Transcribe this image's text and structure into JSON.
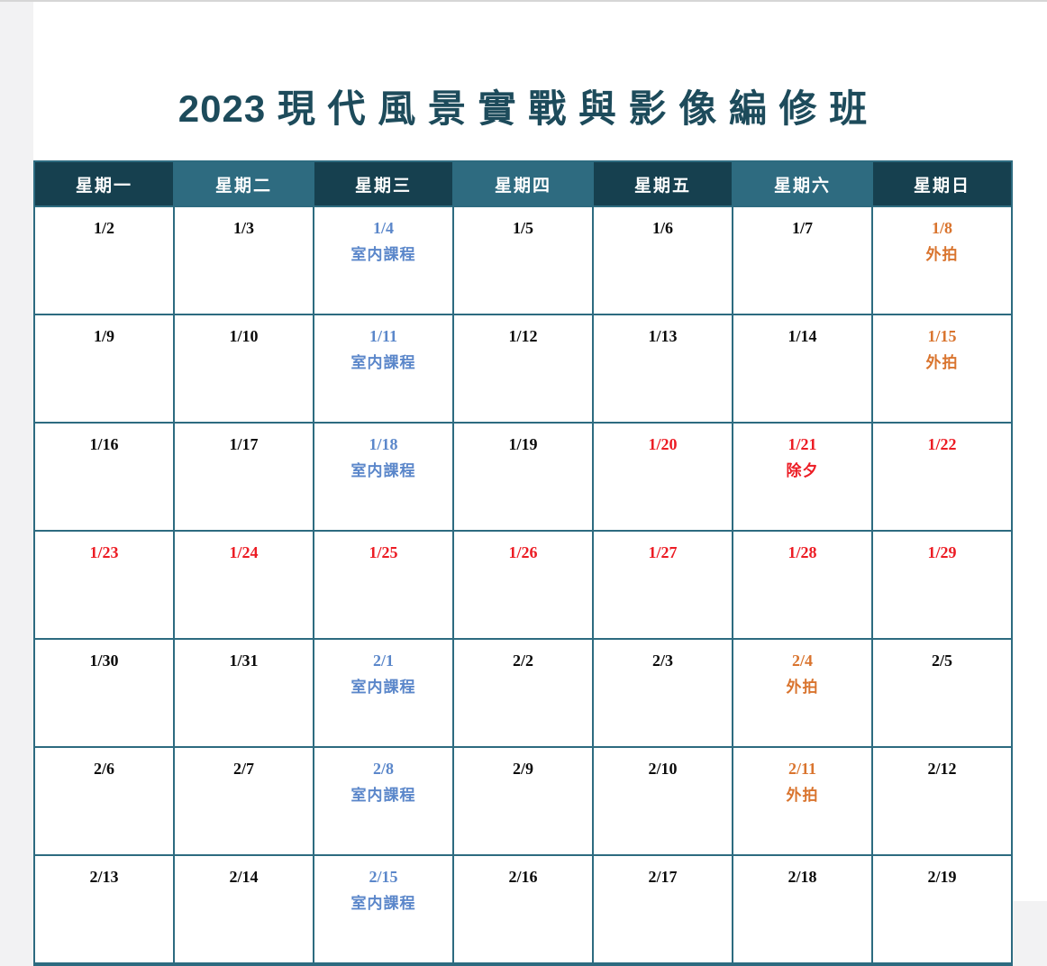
{
  "page": {
    "title": "2023 現 代 風 景 實 戰 與 影 像 編 修 班"
  },
  "colors": {
    "title": "#1d4b5b",
    "header_dark": "#16404f",
    "header_light": "#2e6b80",
    "grid_border": "#2d6b80",
    "date_black": "#0b0b0b",
    "holiday_red": "#ec1c24",
    "indoor_blue": "#5b87ca",
    "outdoor_orange": "#d9742e"
  },
  "calendar": {
    "weekdays": [
      "星期一",
      "星期二",
      "星期三",
      "星期四",
      "星期五",
      "星期六",
      "星期日"
    ],
    "legend": {
      "indoor_label": "室内課程",
      "outdoor_label": "外拍",
      "eve_label": "除夕"
    },
    "rows": [
      {
        "cells": [
          {
            "date": "1/2",
            "note": "",
            "color": "black"
          },
          {
            "date": "1/3",
            "note": "",
            "color": "black"
          },
          {
            "date": "1/4",
            "note": "室内課程",
            "color": "blue"
          },
          {
            "date": "1/5",
            "note": "",
            "color": "black"
          },
          {
            "date": "1/6",
            "note": "",
            "color": "black"
          },
          {
            "date": "1/7",
            "note": "",
            "color": "black"
          },
          {
            "date": "1/8",
            "note": "外拍",
            "color": "orange"
          }
        ]
      },
      {
        "cells": [
          {
            "date": "1/9",
            "note": "",
            "color": "black"
          },
          {
            "date": "1/10",
            "note": "",
            "color": "black"
          },
          {
            "date": "1/11",
            "note": "室内課程",
            "color": "blue"
          },
          {
            "date": "1/12",
            "note": "",
            "color": "black"
          },
          {
            "date": "1/13",
            "note": "",
            "color": "black"
          },
          {
            "date": "1/14",
            "note": "",
            "color": "black"
          },
          {
            "date": "1/15",
            "note": "外拍",
            "color": "orange"
          }
        ]
      },
      {
        "cells": [
          {
            "date": "1/16",
            "note": "",
            "color": "black"
          },
          {
            "date": "1/17",
            "note": "",
            "color": "black"
          },
          {
            "date": "1/18",
            "note": "室内課程",
            "color": "blue"
          },
          {
            "date": "1/19",
            "note": "",
            "color": "black"
          },
          {
            "date": "1/20",
            "note": "",
            "color": "red"
          },
          {
            "date": "1/21",
            "note": "除夕",
            "color": "red"
          },
          {
            "date": "1/22",
            "note": "",
            "color": "red"
          }
        ]
      },
      {
        "cells": [
          {
            "date": "1/23",
            "note": "",
            "color": "red"
          },
          {
            "date": "1/24",
            "note": "",
            "color": "red"
          },
          {
            "date": "1/25",
            "note": "",
            "color": "red"
          },
          {
            "date": "1/26",
            "note": "",
            "color": "red"
          },
          {
            "date": "1/27",
            "note": "",
            "color": "red"
          },
          {
            "date": "1/28",
            "note": "",
            "color": "red"
          },
          {
            "date": "1/29",
            "note": "",
            "color": "red"
          }
        ]
      },
      {
        "cells": [
          {
            "date": "1/30",
            "note": "",
            "color": "black"
          },
          {
            "date": "1/31",
            "note": "",
            "color": "black"
          },
          {
            "date": "2/1",
            "note": "室内課程",
            "color": "blue"
          },
          {
            "date": "2/2",
            "note": "",
            "color": "black"
          },
          {
            "date": "2/3",
            "note": "",
            "color": "black"
          },
          {
            "date": "2/4",
            "note": "外拍",
            "color": "orange"
          },
          {
            "date": "2/5",
            "note": "",
            "color": "black"
          }
        ]
      },
      {
        "cells": [
          {
            "date": "2/6",
            "note": "",
            "color": "black"
          },
          {
            "date": "2/7",
            "note": "",
            "color": "black"
          },
          {
            "date": "2/8",
            "note": "室内課程",
            "color": "blue"
          },
          {
            "date": "2/9",
            "note": "",
            "color": "black"
          },
          {
            "date": "2/10",
            "note": "",
            "color": "black"
          },
          {
            "date": "2/11",
            "note": "外拍",
            "color": "orange"
          },
          {
            "date": "2/12",
            "note": "",
            "color": "black"
          }
        ]
      },
      {
        "cells": [
          {
            "date": "2/13",
            "note": "",
            "color": "black"
          },
          {
            "date": "2/14",
            "note": "",
            "color": "black"
          },
          {
            "date": "2/15",
            "note": "室内課程",
            "color": "blue"
          },
          {
            "date": "2/16",
            "note": "",
            "color": "black"
          },
          {
            "date": "2/17",
            "note": "",
            "color": "black"
          },
          {
            "date": "2/18",
            "note": "",
            "color": "black"
          },
          {
            "date": "2/19",
            "note": "",
            "color": "black"
          }
        ]
      }
    ]
  }
}
